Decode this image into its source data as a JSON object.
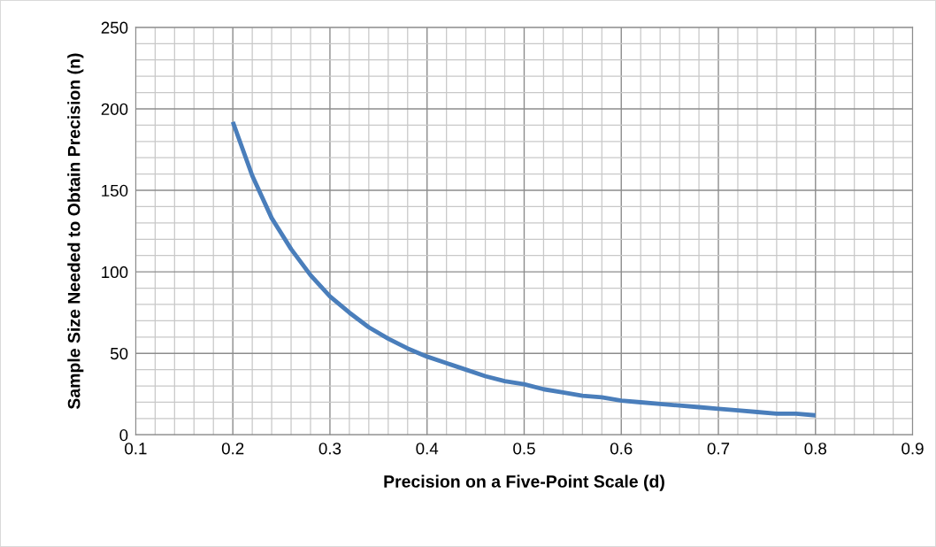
{
  "chart_data": {
    "type": "line",
    "xlabel": "Precision on a Five-Point Scale (d)",
    "ylabel": "Sample Size Needed to Obtain Precision (n)",
    "x": [
      0.2,
      0.22,
      0.24,
      0.26,
      0.28,
      0.3,
      0.32,
      0.34,
      0.36,
      0.38,
      0.4,
      0.42,
      0.44,
      0.46,
      0.48,
      0.5,
      0.52,
      0.54,
      0.56,
      0.58,
      0.6,
      0.62,
      0.64,
      0.66,
      0.68,
      0.7,
      0.72,
      0.74,
      0.76,
      0.78,
      0.8
    ],
    "series": [
      {
        "color": "#4a7ebb",
        "values": [
          192,
          159,
          133,
          114,
          98,
          85,
          75,
          66,
          59,
          53,
          48,
          44,
          40,
          36,
          33,
          31,
          28,
          26,
          24,
          23,
          21,
          20,
          19,
          18,
          17,
          16,
          15,
          14,
          13,
          13,
          12
        ]
      }
    ],
    "xlim": [
      0.1,
      0.9
    ],
    "xticks": [
      0.1,
      0.2,
      0.3,
      0.4,
      0.5,
      0.6,
      0.7,
      0.8,
      0.9
    ],
    "ylim": [
      0,
      250
    ],
    "yticks": [
      0,
      50,
      100,
      150,
      200,
      250
    ],
    "grid": true,
    "marker": "none",
    "line_style": "solid"
  }
}
